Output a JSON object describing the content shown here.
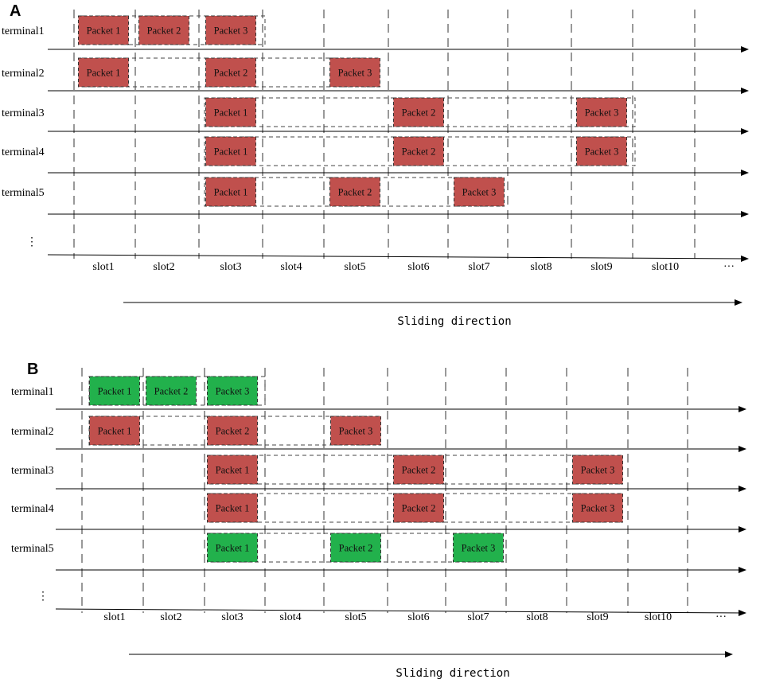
{
  "panels": [
    {
      "label": "A",
      "terminals": [
        {
          "label": "terminal1",
          "packets": [
            {
              "label": "Packet 1",
              "slot": 1,
              "color": "#c0504d"
            },
            {
              "label": "Packet 2",
              "slot": 2,
              "color": "#c0504d"
            },
            {
              "label": "Packet 3",
              "slot": 3,
              "color": "#c0504d"
            }
          ]
        },
        {
          "label": "terminal2",
          "packets": [
            {
              "label": "Packet 1",
              "slot": 1,
              "color": "#c0504d"
            },
            {
              "label": "Packet 2",
              "slot": 3,
              "color": "#c0504d"
            },
            {
              "label": "Packet 3",
              "slot": 5,
              "color": "#c0504d"
            }
          ]
        },
        {
          "label": "terminal3",
          "packets": [
            {
              "label": "Packet 1",
              "slot": 3,
              "color": "#c0504d"
            },
            {
              "label": "Packet 2",
              "slot": 6,
              "color": "#c0504d"
            },
            {
              "label": "Packet 3",
              "slot": 9,
              "color": "#c0504d"
            }
          ]
        },
        {
          "label": "terminal4",
          "packets": [
            {
              "label": "Packet 1",
              "slot": 3,
              "color": "#c0504d"
            },
            {
              "label": "Packet 2",
              "slot": 6,
              "color": "#c0504d"
            },
            {
              "label": "Packet 3",
              "slot": 9,
              "color": "#c0504d"
            }
          ]
        },
        {
          "label": "terminal5",
          "packets": [
            {
              "label": "Packet 1",
              "slot": 3,
              "color": "#c0504d"
            },
            {
              "label": "Packet 2",
              "slot": 5,
              "color": "#c0504d"
            },
            {
              "label": "Packet 3",
              "slot": 7,
              "color": "#c0504d"
            }
          ]
        }
      ],
      "ellipsis": "⋮",
      "slots": [
        "slot1",
        "slot2",
        "slot3",
        "slot4",
        "slot5",
        "slot6",
        "slot7",
        "slot8",
        "slot9",
        "slot10",
        "···"
      ],
      "direction_label": "Sliding direction"
    },
    {
      "label": "B",
      "terminals": [
        {
          "label": "terminal1",
          "packets": [
            {
              "label": "Packet 1",
              "slot": 1,
              "color": "#22b14c"
            },
            {
              "label": "Packet 2",
              "slot": 2,
              "color": "#22b14c"
            },
            {
              "label": "Packet 3",
              "slot": 3,
              "color": "#22b14c"
            }
          ]
        },
        {
          "label": "terminal2",
          "packets": [
            {
              "label": "Packet 1",
              "slot": 1,
              "color": "#c0504d"
            },
            {
              "label": "Packet 2",
              "slot": 3,
              "color": "#c0504d"
            },
            {
              "label": "Packet 3",
              "slot": 5,
              "color": "#c0504d"
            }
          ]
        },
        {
          "label": "terminal3",
          "packets": [
            {
              "label": "Packet 1",
              "slot": 3,
              "color": "#c0504d"
            },
            {
              "label": "Packet 2",
              "slot": 6,
              "color": "#c0504d"
            },
            {
              "label": "Packet 3",
              "slot": 9,
              "color": "#c0504d"
            }
          ]
        },
        {
          "label": "terminal4",
          "packets": [
            {
              "label": "Packet 1",
              "slot": 3,
              "color": "#c0504d"
            },
            {
              "label": "Packet 2",
              "slot": 6,
              "color": "#c0504d"
            },
            {
              "label": "Packet 3",
              "slot": 9,
              "color": "#c0504d"
            }
          ]
        },
        {
          "label": "terminal5",
          "packets": [
            {
              "label": "Packet 1",
              "slot": 3,
              "color": "#22b14c"
            },
            {
              "label": "Packet 2",
              "slot": 5,
              "color": "#22b14c"
            },
            {
              "label": "Packet 3",
              "slot": 7,
              "color": "#22b14c"
            }
          ]
        }
      ],
      "ellipsis": "⋮",
      "slots": [
        "slot1",
        "slot2",
        "slot3",
        "slot4",
        "slot5",
        "slot6",
        "slot7",
        "slot8",
        "slot9",
        "slot10",
        "···"
      ],
      "direction_label": "Sliding direction"
    }
  ],
  "colors": {
    "failed_packet": "#c0504d",
    "successful_packet": "#22b14c"
  }
}
